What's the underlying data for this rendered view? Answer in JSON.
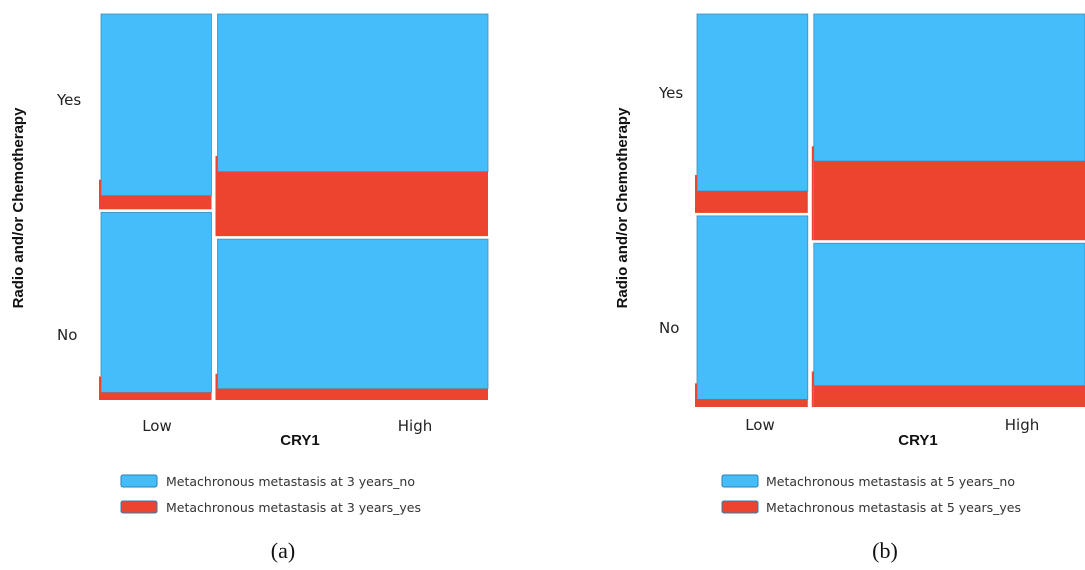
{
  "colors": {
    "no": "#45bdfa",
    "yes": "#ec452f",
    "border": "#3a8fc4",
    "gap": "#d0d0d0"
  },
  "chart_data": [
    {
      "type": "mosaic",
      "panel_label": "(a)",
      "ylabel": "Radio and/or Chemotherapy",
      "xlabel": "CRY1",
      "x_categories": [
        "Low",
        "High"
      ],
      "y_categories": [
        "Yes",
        "No"
      ],
      "x_widths": [
        0.29,
        0.71
      ],
      "cells": {
        "Low": {
          "Yes": {
            "height": 0.51,
            "yes_fraction": 0.07
          },
          "No": {
            "height": 0.49,
            "yes_fraction": 0.04
          }
        },
        "High": {
          "Yes": {
            "height": 0.58,
            "yes_fraction": 0.29
          },
          "No": {
            "height": 0.42,
            "yes_fraction": 0.07
          }
        }
      },
      "legend": [
        "Metachronous metastasis at 3 years_no",
        "Metachronous metastasis at 3 years_yes"
      ]
    },
    {
      "type": "mosaic",
      "panel_label": "(b)",
      "ylabel": "Radio and/or Chemotherapy",
      "xlabel": "CRY1",
      "x_categories": [
        "Low",
        "High"
      ],
      "y_categories": [
        "Yes",
        "No"
      ],
      "x_widths": [
        0.29,
        0.71
      ],
      "cells": {
        "Low": {
          "Yes": {
            "height": 0.51,
            "yes_fraction": 0.11
          },
          "No": {
            "height": 0.49,
            "yes_fraction": 0.04
          }
        },
        "High": {
          "Yes": {
            "height": 0.58,
            "yes_fraction": 0.35
          },
          "No": {
            "height": 0.42,
            "yes_fraction": 0.13
          }
        }
      },
      "legend": [
        "Metachronous metastasis at 5 years_no",
        "Metachronous metastasis at 5 years_yes"
      ]
    }
  ]
}
